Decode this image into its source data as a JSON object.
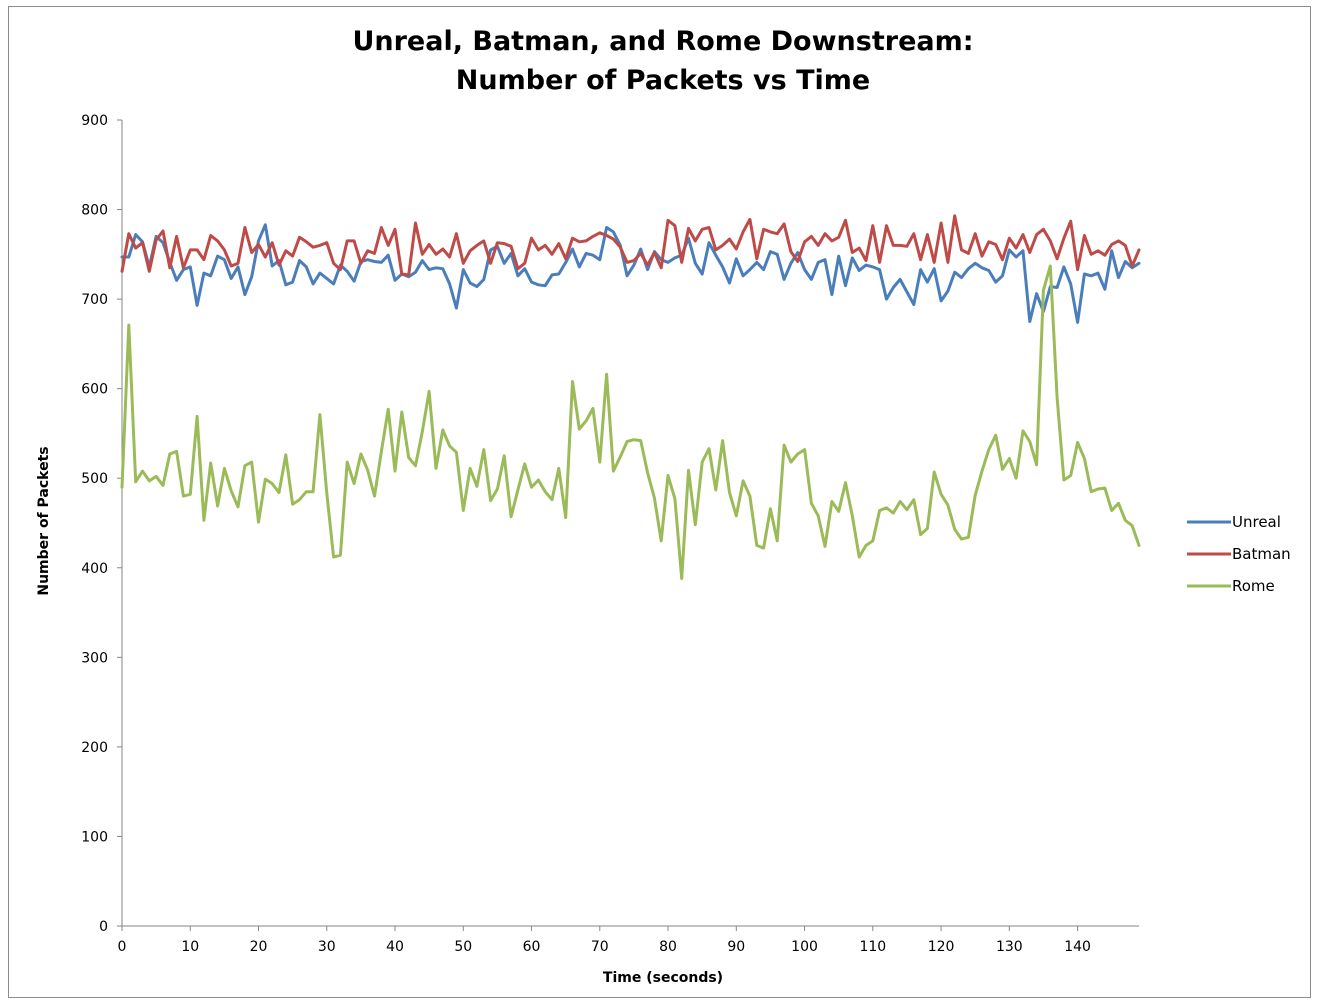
{
  "chart_data": {
    "type": "line",
    "title_lines": [
      "Unreal, Batman, and Rome Downstream:",
      "Number of Packets vs Time"
    ],
    "xlabel": "Time (seconds)",
    "ylabel": "Number of Packets",
    "xlim": [
      0,
      149
    ],
    "ylim": [
      0,
      900
    ],
    "xticks": [
      0,
      10,
      20,
      30,
      40,
      50,
      60,
      70,
      80,
      90,
      100,
      110,
      120,
      130,
      140
    ],
    "yticks": [
      0,
      100,
      200,
      300,
      400,
      500,
      600,
      700,
      800,
      900
    ],
    "grid": false,
    "legend_position": "right",
    "series": [
      {
        "name": "Unreal",
        "color": "#4a7ebb",
        "values": [
          747,
          747,
          772,
          764,
          736,
          770,
          763,
          741,
          721,
          733,
          736,
          693,
          729,
          726,
          748,
          744,
          723,
          736,
          705,
          725,
          765,
          783,
          737,
          743,
          716,
          719,
          743,
          736,
          717,
          729,
          723,
          717,
          738,
          731,
          720,
          742,
          744,
          742,
          741,
          749,
          721,
          728,
          725,
          730,
          743,
          733,
          735,
          734,
          717,
          690,
          733,
          718,
          714,
          722,
          755,
          759,
          740,
          751,
          726,
          734,
          719,
          716,
          715,
          727,
          728,
          741,
          756,
          736,
          751,
          749,
          744,
          780,
          775,
          760,
          726,
          738,
          756,
          733,
          753,
          744,
          741,
          746,
          749,
          768,
          740,
          728,
          763,
          749,
          736,
          718,
          745,
          726,
          733,
          741,
          733,
          753,
          750,
          722,
          740,
          752,
          733,
          722,
          741,
          744,
          705,
          748,
          715,
          746,
          732,
          738,
          736,
          733,
          700,
          713,
          722,
          708,
          694,
          733,
          719,
          734,
          698,
          709,
          730,
          724,
          734,
          740,
          735,
          732,
          719,
          726,
          755,
          747,
          754,
          675,
          706,
          686,
          714,
          713,
          736,
          717,
          674,
          728,
          726,
          729,
          711,
          754,
          724,
          742,
          735,
          740
        ]
      },
      {
        "name": "Batman",
        "color": "#be4b48",
        "values": [
          731,
          773,
          757,
          763,
          731,
          766,
          776,
          735,
          770,
          735,
          755,
          755,
          744,
          771,
          765,
          755,
          737,
          740,
          780,
          752,
          761,
          747,
          763,
          738,
          754,
          748,
          769,
          764,
          758,
          760,
          763,
          740,
          733,
          765,
          765,
          740,
          754,
          751,
          780,
          760,
          778,
          728,
          727,
          785,
          750,
          761,
          750,
          756,
          747,
          773,
          740,
          754,
          760,
          765,
          740,
          763,
          762,
          759,
          734,
          740,
          768,
          755,
          760,
          750,
          762,
          745,
          768,
          764,
          765,
          770,
          774,
          771,
          767,
          758,
          741,
          743,
          751,
          738,
          752,
          735,
          788,
          782,
          741,
          779,
          765,
          778,
          780,
          755,
          760,
          767,
          756,
          775,
          789,
          745,
          778,
          775,
          773,
          784,
          753,
          742,
          764,
          770,
          760,
          773,
          765,
          769,
          788,
          752,
          757,
          743,
          782,
          741,
          782,
          760,
          760,
          759,
          773,
          744,
          772,
          741,
          785,
          741,
          793,
          755,
          751,
          773,
          748,
          764,
          761,
          744,
          768,
          757,
          772,
          752,
          772,
          778,
          765,
          745,
          768,
          787,
          733,
          771,
          750,
          754,
          749,
          761,
          765,
          760,
          737,
          755
        ]
      },
      {
        "name": "Rome",
        "color": "#9bbb59",
        "values": [
          490,
          671,
          496,
          508,
          497,
          502,
          492,
          527,
          530,
          480,
          482,
          569,
          453,
          517,
          469,
          511,
          486,
          468,
          514,
          518,
          451,
          499,
          494,
          484,
          526,
          471,
          476,
          485,
          485,
          571,
          483,
          412,
          414,
          518,
          494,
          527,
          509,
          480,
          530,
          577,
          508,
          574,
          523,
          514,
          552,
          597,
          511,
          554,
          536,
          529,
          464,
          511,
          491,
          532,
          475,
          488,
          525,
          457,
          487,
          516,
          490,
          498,
          485,
          476,
          511,
          456,
          608,
          555,
          564,
          578,
          518,
          616,
          508,
          524,
          541,
          543,
          542,
          506,
          478,
          430,
          503,
          477,
          388,
          509,
          448,
          518,
          533,
          487,
          542,
          484,
          458,
          497,
          480,
          425,
          422,
          466,
          430,
          537,
          518,
          527,
          532,
          472,
          458,
          424,
          474,
          463,
          495,
          458,
          412,
          425,
          430,
          464,
          467,
          461,
          474,
          465,
          476,
          437,
          444,
          507,
          482,
          470,
          443,
          432,
          434,
          481,
          508,
          532,
          548,
          510,
          522,
          500,
          553,
          541,
          515,
          710,
          737,
          590,
          498,
          503,
          540,
          522,
          485,
          488,
          489,
          464,
          472,
          453,
          447,
          425
        ]
      }
    ]
  }
}
